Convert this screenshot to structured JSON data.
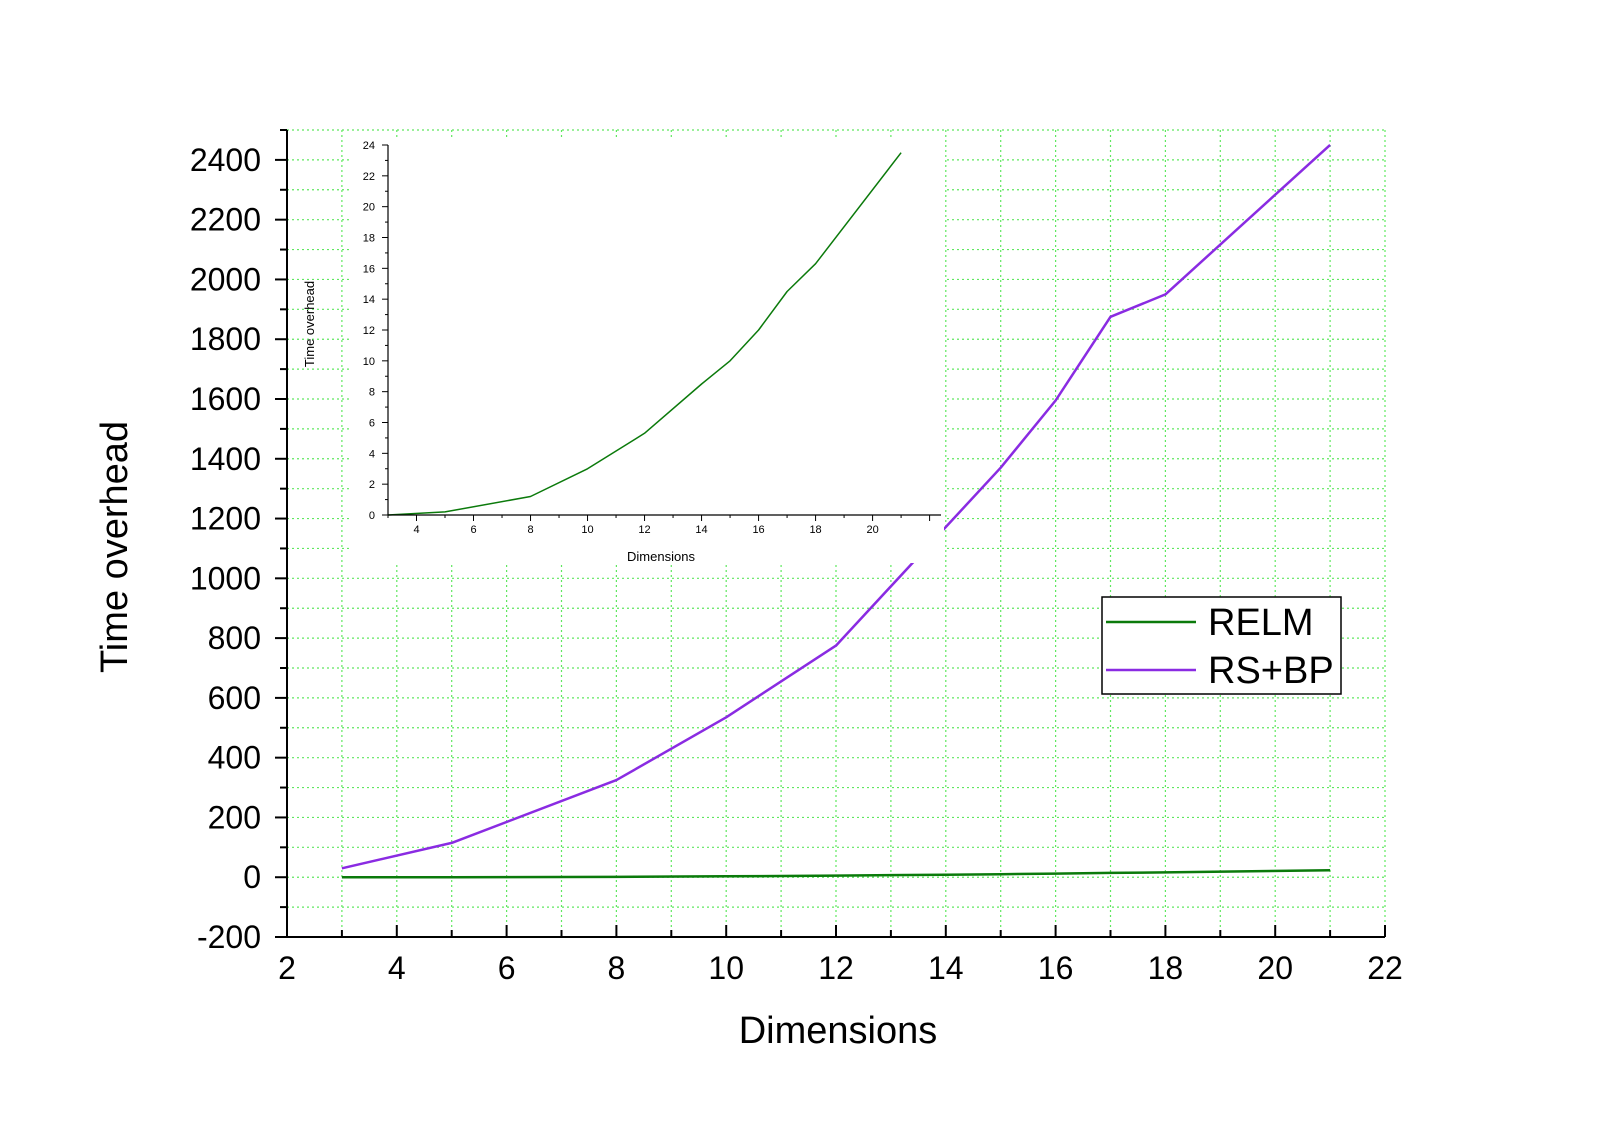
{
  "colors": {
    "relm": "#0b7a0b",
    "rsbp": "#8a2be2",
    "grid": "#5fe85f",
    "axis": "#000000",
    "background": "#ffffff"
  },
  "legend": {
    "position": "right-middle",
    "entries": [
      "RELM",
      "RS+BP"
    ]
  },
  "chart_data": [
    {
      "type": "line",
      "title": "",
      "xlabel": "Dimensions",
      "ylabel": "Time overhead",
      "xlim": [
        2,
        22
      ],
      "ylim": [
        -200,
        2500
      ],
      "x_ticks": [
        "2",
        "4",
        "6",
        "8",
        "10",
        "12",
        "14",
        "16",
        "18",
        "20",
        "22"
      ],
      "y_ticks": [
        "-200",
        "0",
        "200",
        "400",
        "600",
        "800",
        "1000",
        "1200",
        "1400",
        "1600",
        "1800",
        "2000",
        "2200",
        "2400"
      ],
      "grid": true,
      "legend": "right-middle",
      "series": [
        {
          "name": "RELM",
          "x": [
            3,
            5,
            8,
            10,
            12,
            14,
            15,
            16,
            17,
            18,
            21
          ],
          "y": [
            0,
            0.2,
            1.2,
            3,
            5.3,
            8.5,
            10,
            12,
            14.5,
            16.3,
            23.5
          ]
        },
        {
          "name": "RS+BP",
          "x": [
            3,
            5,
            8,
            10,
            12,
            15,
            16,
            17,
            18,
            21
          ],
          "y": [
            30,
            115,
            325,
            535,
            775,
            1370,
            1595,
            1875,
            1950,
            2450
          ]
        }
      ]
    },
    {
      "type": "line",
      "title": "",
      "xlabel": "Dimensions",
      "ylabel": "Time overhead",
      "xlim": [
        3,
        22.4
      ],
      "ylim": [
        0,
        24
      ],
      "x_ticks": [
        "4",
        "6",
        "8",
        "10",
        "12",
        "14",
        "16",
        "18",
        "20"
      ],
      "y_ticks": [
        "0",
        "2",
        "4",
        "6",
        "8",
        "10",
        "12",
        "14",
        "16",
        "18",
        "20",
        "22",
        "24"
      ],
      "grid": false,
      "series": [
        {
          "name": "RELM",
          "x": [
            3,
            5,
            8,
            10,
            12,
            14,
            15,
            16,
            17,
            18,
            21
          ],
          "y": [
            0,
            0.2,
            1.2,
            3,
            5.3,
            8.5,
            10,
            12,
            14.5,
            16.3,
            23.5
          ]
        }
      ]
    }
  ]
}
